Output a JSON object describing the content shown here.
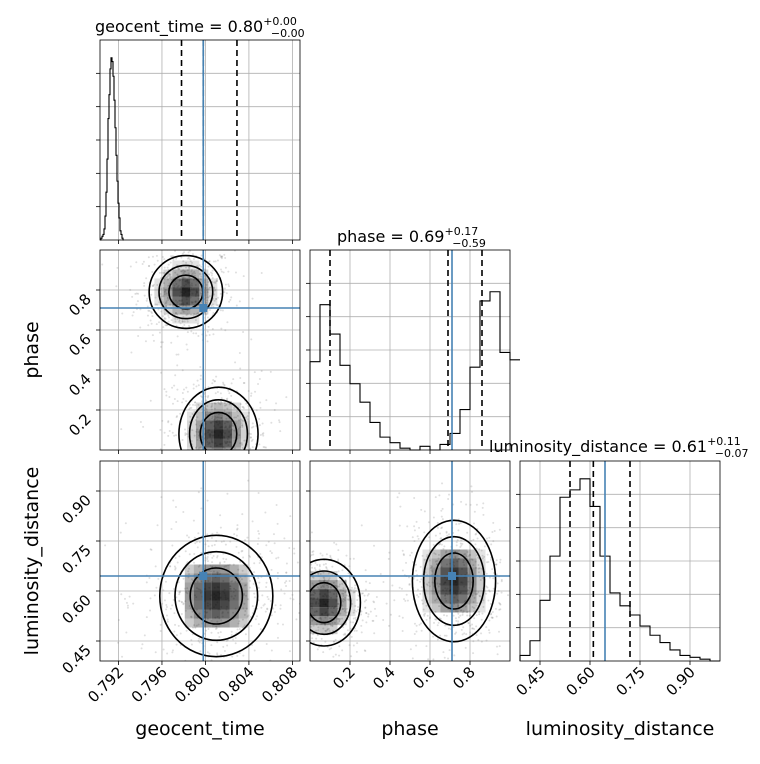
{
  "chart_data": {
    "type": "corner",
    "parameters": [
      "geocent_time",
      "phase",
      "luminosity_distance"
    ],
    "truths": {
      "geocent_time": 0.7998,
      "phase": 0.71,
      "luminosity_distance": 0.645
    },
    "colors": {
      "truth": "#4682b4",
      "hist": "#000000",
      "grid": "#b0b0b0",
      "points": "#808080"
    },
    "titles": [
      {
        "param": "geocent_time",
        "prefix": "geocent_time = 0.80",
        "plus": "+0.00",
        "minus": "−0.00"
      },
      {
        "param": "phase",
        "prefix": "phase = 0.69",
        "plus": "+0.17",
        "minus": "−0.59"
      },
      {
        "param": "luminosity_distance",
        "prefix": "luminosity_distance = 0.61",
        "plus": "+0.11",
        "minus": "−0.07"
      }
    ],
    "axes": {
      "geocent_time": {
        "range": [
          0.7903,
          0.8087
        ],
        "ticks": [
          0.792,
          0.796,
          0.8,
          0.804,
          0.808
        ],
        "ticklabels": [
          "0.792",
          "0.796",
          "0.800",
          "0.804",
          "0.808"
        ],
        "label": "geocent_time"
      },
      "phase": {
        "range": [
          0.0,
          1.0
        ],
        "ticks": [
          0.2,
          0.4,
          0.6,
          0.8
        ],
        "ticklabels": [
          "0.2",
          "0.4",
          "0.6",
          "0.8"
        ],
        "label": "phase"
      },
      "luminosity_distance": {
        "range": [
          0.39,
          0.99
        ],
        "ticks": [
          0.45,
          0.6,
          0.75,
          0.9
        ],
        "ticklabels": [
          "0.45",
          "0.60",
          "0.75",
          "0.90"
        ],
        "label": "luminosity_distance"
      }
    },
    "quantiles": {
      "geocent_time": [
        0.7978,
        0.7998,
        0.8029
      ],
      "phase": [
        0.1,
        0.69,
        0.86
      ],
      "luminosity_distance": [
        0.54,
        0.61,
        0.72
      ]
    },
    "histograms": {
      "geocent_time": {
        "edges_start": 0.7903,
        "bin_width": 9.2e-05,
        "counts": [
          0.0,
          0.01,
          0.02,
          0.03,
          0.06,
          0.13,
          0.26,
          0.44,
          0.66,
          0.79,
          0.93,
          0.99,
          0.97,
          0.89,
          0.76,
          0.61,
          0.46,
          0.32,
          0.2,
          0.12,
          0.05,
          0.03,
          0.01,
          0.0
        ]
      },
      "phase": {
        "edges_start": 0.0,
        "bin_width": 0.05,
        "counts": [
          0.48,
          0.79,
          0.63,
          0.46,
          0.36,
          0.26,
          0.15,
          0.07,
          0.04,
          0.01,
          0.0,
          0.02,
          0.0,
          0.03,
          0.09,
          0.22,
          0.45,
          0.81,
          0.86,
          0.53,
          0.49
        ]
      },
      "luminosity_distance": {
        "edges_start": 0.39,
        "bin_width": 0.03,
        "counts": [
          0.03,
          0.11,
          0.33,
          0.57,
          0.89,
          0.93,
          0.99,
          0.84,
          0.57,
          0.37,
          0.3,
          0.25,
          0.19,
          0.14,
          0.1,
          0.06,
          0.03,
          0.02,
          0.01,
          0.0
        ]
      }
    },
    "joint_modes": [
      {
        "x": "geocent_time",
        "y": "phase",
        "centers": [
          [
            0.7982,
            0.79
          ],
          [
            0.8012,
            0.08
          ]
        ],
        "spread": [
          [
            0.0013,
            0.07
          ],
          [
            0.0014,
            0.09
          ]
        ]
      },
      {
        "x": "geocent_time",
        "y": "luminosity_distance",
        "centers": [
          [
            0.801,
            0.585
          ]
        ],
        "spread": [
          [
            0.002,
            0.07
          ]
        ]
      },
      {
        "x": "phase",
        "y": "luminosity_distance",
        "centers": [
          [
            0.07,
            0.565
          ],
          [
            0.72,
            0.63
          ]
        ],
        "spread": [
          [
            0.07,
            0.05
          ],
          [
            0.08,
            0.07
          ]
        ]
      }
    ]
  }
}
